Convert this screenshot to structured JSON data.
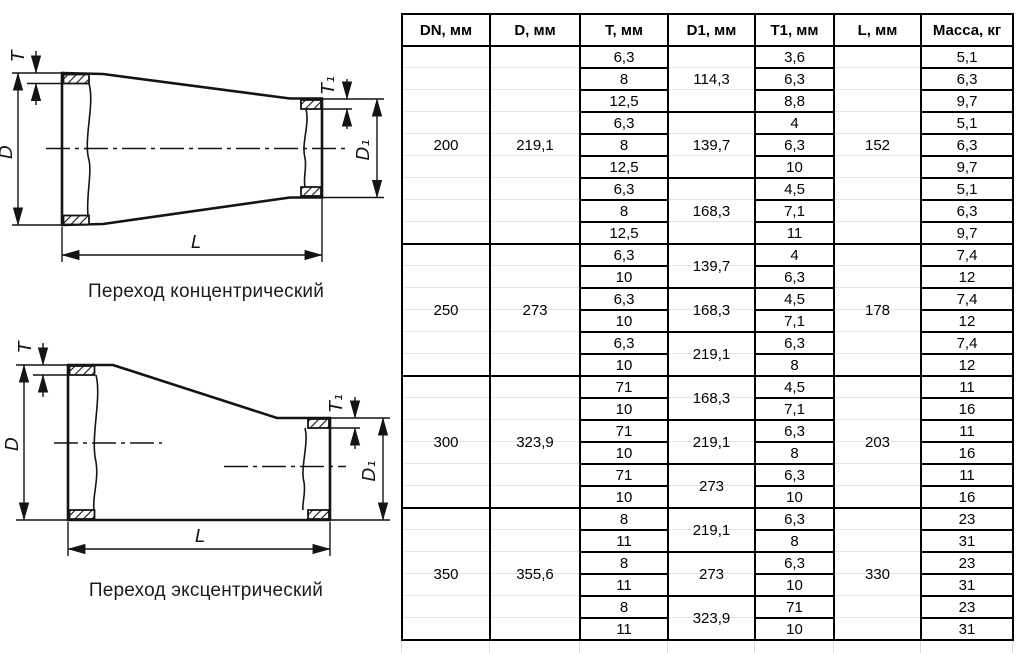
{
  "page": {
    "background": "#ffffff"
  },
  "colors": {
    "line": "#141414",
    "table_border": "#000000",
    "faint_grid": "#e2e2e2",
    "text": "#000000"
  },
  "diagrams": [
    {
      "caption": "Переход концентрический",
      "labels": {
        "T": "T",
        "D": "D",
        "T1": "T₁",
        "D1": "D₁",
        "L": "L"
      }
    },
    {
      "caption": "Переход эксцентрический",
      "labels": {
        "T": "T",
        "D": "D",
        "T1": "T₁",
        "D1": "D₁",
        "L": "L"
      }
    }
  ],
  "table": {
    "headers": [
      "DN, мм",
      "D, мм",
      "T, мм",
      "D1, мм",
      "T1, мм",
      "L, мм",
      "Масса, кг"
    ],
    "sections": [
      {
        "dn": "200",
        "d": "219,1",
        "l": "152",
        "groups": [
          {
            "d1": "114,3",
            "rows": [
              {
                "t": "6,3",
                "t1": "3,6",
                "mass": "5,1"
              },
              {
                "t": "8",
                "t1": "6,3",
                "mass": "6,3"
              },
              {
                "t": "12,5",
                "t1": "8,8",
                "mass": "9,7"
              }
            ]
          },
          {
            "d1": "139,7",
            "rows": [
              {
                "t": "6,3",
                "t1": "4",
                "mass": "5,1"
              },
              {
                "t": "8",
                "t1": "6,3",
                "mass": "6,3"
              },
              {
                "t": "12,5",
                "t1": "10",
                "mass": "9,7"
              }
            ]
          },
          {
            "d1": "168,3",
            "rows": [
              {
                "t": "6,3",
                "t1": "4,5",
                "mass": "5,1"
              },
              {
                "t": "8",
                "t1": "7,1",
                "mass": "6,3"
              },
              {
                "t": "12,5",
                "t1": "11",
                "mass": "9,7"
              }
            ]
          }
        ]
      },
      {
        "dn": "250",
        "d": "273",
        "l": "178",
        "groups": [
          {
            "d1": "139,7",
            "rows": [
              {
                "t": "6,3",
                "t1": "4",
                "mass": "7,4"
              },
              {
                "t": "10",
                "t1": "6,3",
                "mass": "12"
              }
            ]
          },
          {
            "d1": "168,3",
            "rows": [
              {
                "t": "6,3",
                "t1": "4,5",
                "mass": "7,4"
              },
              {
                "t": "10",
                "t1": "7,1",
                "mass": "12"
              }
            ]
          },
          {
            "d1": "219,1",
            "rows": [
              {
                "t": "6,3",
                "t1": "6,3",
                "mass": "7,4"
              },
              {
                "t": "10",
                "t1": "8",
                "mass": "12"
              }
            ]
          }
        ]
      },
      {
        "dn": "300",
        "d": "323,9",
        "l": "203",
        "groups": [
          {
            "d1": "168,3",
            "rows": [
              {
                "t": "71",
                "t1": "4,5",
                "mass": "11"
              },
              {
                "t": "10",
                "t1": "7,1",
                "mass": "16"
              }
            ]
          },
          {
            "d1": "219,1",
            "rows": [
              {
                "t": "71",
                "t1": "6,3",
                "mass": "11"
              },
              {
                "t": "10",
                "t1": "8",
                "mass": "16"
              }
            ]
          },
          {
            "d1": "273",
            "rows": [
              {
                "t": "71",
                "t1": "6,3",
                "mass": "11"
              },
              {
                "t": "10",
                "t1": "10",
                "mass": "16"
              }
            ]
          }
        ]
      },
      {
        "dn": "350",
        "d": "355,6",
        "l": "330",
        "groups": [
          {
            "d1": "219,1",
            "rows": [
              {
                "t": "8",
                "t1": "6,3",
                "mass": "23"
              },
              {
                "t": "11",
                "t1": "8",
                "mass": "31"
              }
            ]
          },
          {
            "d1": "273",
            "rows": [
              {
                "t": "8",
                "t1": "6,3",
                "mass": "23"
              },
              {
                "t": "11",
                "t1": "10",
                "mass": "31"
              }
            ]
          },
          {
            "d1": "323,9",
            "rows": [
              {
                "t": "8",
                "t1": "71",
                "mass": "23"
              },
              {
                "t": "11",
                "t1": "10",
                "mass": "31"
              }
            ]
          }
        ]
      }
    ]
  }
}
